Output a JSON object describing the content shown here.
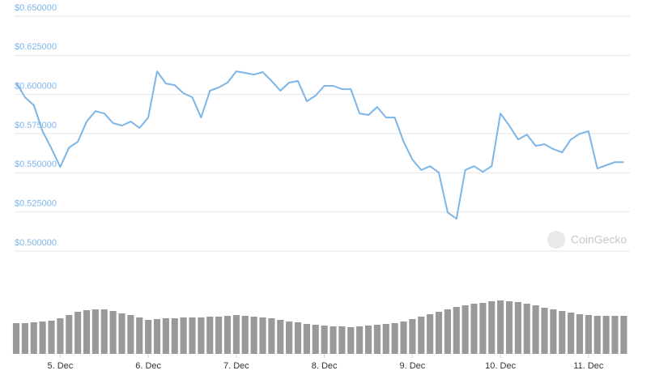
{
  "chart_data": {
    "type": "line",
    "color": "#7cb5e6",
    "x": [
      4.5,
      4.6,
      4.7,
      4.8,
      4.9,
      5.0,
      5.1,
      5.2,
      5.3,
      5.4,
      5.5,
      5.6,
      5.7,
      5.8,
      5.9,
      6.0,
      6.1,
      6.2,
      6.3,
      6.4,
      6.5,
      6.6,
      6.7,
      6.8,
      6.9,
      7.0,
      7.1,
      7.2,
      7.3,
      7.4,
      7.5,
      7.6,
      7.7,
      7.8,
      7.9,
      8.0,
      8.1,
      8.2,
      8.3,
      8.4,
      8.5,
      8.6,
      8.7,
      8.8,
      8.9,
      9.0,
      9.1,
      9.2,
      9.3,
      9.4,
      9.5,
      9.6,
      9.7,
      9.8,
      9.9,
      10.0,
      10.1,
      10.2,
      10.3,
      10.4,
      10.5,
      10.6,
      10.7,
      10.8,
      10.9,
      11.0,
      11.1,
      11.2,
      11.3,
      11.4
    ],
    "values": [
      0.6076,
      0.5982,
      0.5931,
      0.5765,
      0.5656,
      0.5537,
      0.5661,
      0.5698,
      0.5827,
      0.5894,
      0.5879,
      0.5817,
      0.5801,
      0.5827,
      0.5786,
      0.5853,
      0.6148,
      0.607,
      0.606,
      0.6008,
      0.5982,
      0.5853,
      0.6024,
      0.6045,
      0.6076,
      0.6148,
      0.6138,
      0.6127,
      0.6143,
      0.6086,
      0.6024,
      0.6076,
      0.6086,
      0.5957,
      0.5993,
      0.6055,
      0.6055,
      0.6034,
      0.6034,
      0.5879,
      0.5869,
      0.592,
      0.5853,
      0.5853,
      0.5698,
      0.5584,
      0.5517,
      0.5542,
      0.5501,
      0.5247,
      0.5206,
      0.5517,
      0.5542,
      0.5506,
      0.5542,
      0.5879,
      0.5801,
      0.5713,
      0.5744,
      0.5672,
      0.5682,
      0.5651,
      0.563,
      0.5713,
      0.5749,
      0.5765,
      0.5527,
      0.5548,
      0.5568,
      0.5568
    ],
    "xlim": [
      4.5,
      11.47
    ],
    "xticks": [
      {
        "value": 5,
        "label": "5. Dec"
      },
      {
        "value": 6,
        "label": "6. Dec"
      },
      {
        "value": 7,
        "label": "7. Dec"
      },
      {
        "value": 8,
        "label": "8. Dec"
      },
      {
        "value": 9,
        "label": "9. Dec"
      },
      {
        "value": 10,
        "label": "10. Dec"
      },
      {
        "value": 11,
        "label": "11. Dec"
      }
    ],
    "ylim": [
      0.5,
      0.65
    ],
    "yticks": [
      {
        "value": 0.5,
        "label": "$0.500000"
      },
      {
        "value": 0.525,
        "label": "$0.525000"
      },
      {
        "value": 0.55,
        "label": "$0.550000"
      },
      {
        "value": 0.575,
        "label": "$0.575000"
      },
      {
        "value": 0.6,
        "label": "$0.600000"
      },
      {
        "value": 0.625,
        "label": "$0.625000"
      },
      {
        "value": 0.65,
        "label": "$0.650000"
      }
    ],
    "grid": true,
    "volume": {
      "type": "bar",
      "color": "#999999",
      "y2lim": [
        0,
        100
      ],
      "values": [
        38,
        38,
        39,
        40,
        41,
        44,
        48,
        52,
        54,
        55,
        55,
        53,
        50,
        48,
        45,
        42,
        43,
        44,
        44,
        45,
        45,
        45,
        46,
        46,
        47,
        48,
        47,
        46,
        45,
        44,
        42,
        40,
        39,
        37,
        36,
        35,
        34,
        34,
        33,
        34,
        35,
        36,
        37,
        38,
        40,
        43,
        46,
        49,
        52,
        55,
        58,
        60,
        62,
        63,
        65,
        66,
        65,
        64,
        62,
        60,
        57,
        55,
        53,
        51,
        49,
        48,
        47,
        47,
        47,
        47
      ]
    },
    "watermark": "CoinGecko"
  }
}
